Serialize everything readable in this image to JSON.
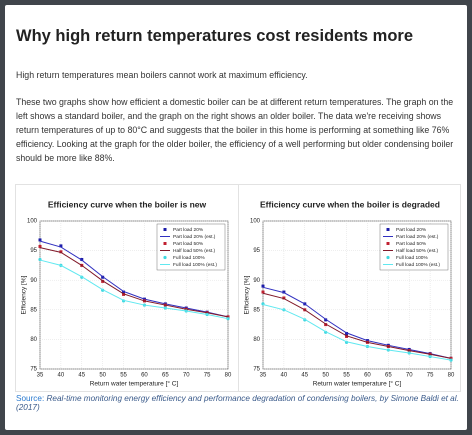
{
  "header": {
    "title": "Why high return temperatures cost residents more"
  },
  "paragraphs": [
    "High return temperatures mean boilers cannot work at maximum efficiency.",
    "These two graphs show how efficient a domestic boiler can be at different return temperatures. The graph on the left shows a standard boiler, and the graph on the right shows an older boiler. The data we're receiving shows return temperatures of up to 80°C and suggests that the boiler in this home is performing at something like 76% efficiency. Looking at the graph for the older boiler, the efficiency of a well performing but older condensing boiler should be more like 88%."
  ],
  "figure": {
    "charts": [
      {
        "type": "line",
        "title": "Efficiency curve when the boiler is new",
        "x_label": "Return water temperature [° C]",
        "y_label": "Efficiency [%]",
        "x": [
          35,
          40,
          45,
          50,
          55,
          60,
          65,
          70,
          75,
          80
        ],
        "series": [
          {
            "name": "Part load 20%",
            "color": "#1c1ca8",
            "style": "markers",
            "marker": "square",
            "values": [
              96.8,
              95.8,
              93.5,
              90.5,
              88.0,
              86.8,
              86.0,
              85.3,
              84.6,
              83.8
            ]
          },
          {
            "name": "Part load 20% (est.)",
            "color": "#3030c0",
            "style": "line",
            "values": [
              96.6,
              95.6,
              93.4,
              90.6,
              88.1,
              86.8,
              86.0,
              85.3,
              84.6,
              83.8
            ]
          },
          {
            "name": "Part load 50%",
            "color": "#c02030",
            "style": "markers",
            "marker": "square",
            "values": [
              95.7,
              94.8,
              92.5,
              89.8,
              87.6,
              86.5,
              85.8,
              85.1,
              84.5,
              83.8
            ]
          },
          {
            "name": "Half load 50% (est.)",
            "color": "#801828",
            "style": "line",
            "values": [
              95.5,
              94.7,
              92.5,
              89.9,
              87.7,
              86.5,
              85.8,
              85.1,
              84.5,
              83.8
            ]
          },
          {
            "name": "Full load 100%",
            "color": "#40d8e0",
            "style": "markers",
            "marker": "circle",
            "values": [
              93.5,
              92.5,
              90.5,
              88.3,
              86.5,
              85.8,
              85.3,
              84.8,
              84.2,
              83.5
            ]
          },
          {
            "name": "Full load 100% (est.)",
            "color": "#60e8f0",
            "style": "line",
            "values": [
              93.4,
              92.5,
              90.6,
              88.4,
              86.6,
              85.8,
              85.3,
              84.8,
              84.2,
              83.5
            ]
          }
        ],
        "xlim": [
          35,
          80
        ],
        "ylim": [
          75,
          100
        ],
        "xticks": [
          35,
          40,
          45,
          50,
          55,
          60,
          65,
          70,
          75,
          80
        ],
        "yticks": [
          75,
          80,
          85,
          90,
          95,
          100
        ],
        "grid": true,
        "legend": "upper right"
      },
      {
        "type": "line",
        "title": "Efficiency curve when the boiler is degraded",
        "x_label": "Return water temperature [° C]",
        "y_label": "Efficiency [%]",
        "x": [
          35,
          40,
          45,
          50,
          55,
          60,
          65,
          70,
          75,
          80
        ],
        "series": [
          {
            "name": "Part load 20%",
            "color": "#1c1ca8",
            "style": "markers",
            "marker": "square",
            "values": [
              89.0,
              88.0,
              86.0,
              83.3,
              81.0,
              79.8,
              79.0,
              78.3,
              77.6,
              76.8
            ]
          },
          {
            "name": "Part load 20% (est.)",
            "color": "#3030c0",
            "style": "line",
            "values": [
              88.8,
              87.9,
              86.0,
              83.4,
              81.1,
              79.8,
              79.0,
              78.3,
              77.6,
              76.8
            ]
          },
          {
            "name": "Part load 50%",
            "color": "#c02030",
            "style": "markers",
            "marker": "square",
            "values": [
              88.0,
              87.0,
              85.0,
              82.5,
              80.5,
              79.5,
              78.8,
              78.1,
              77.5,
              76.8
            ]
          },
          {
            "name": "Half load 50% (est.)",
            "color": "#801828",
            "style": "line",
            "values": [
              87.8,
              86.9,
              85.0,
              82.6,
              80.6,
              79.5,
              78.8,
              78.1,
              77.5,
              76.8
            ]
          },
          {
            "name": "Full load 100%",
            "color": "#40d8e0",
            "style": "markers",
            "marker": "circle",
            "values": [
              86.0,
              85.0,
              83.3,
              81.2,
              79.5,
              78.8,
              78.2,
              77.7,
              77.1,
              76.5
            ]
          },
          {
            "name": "Full load 100% (est.)",
            "color": "#60e8f0",
            "style": "line",
            "values": [
              85.9,
              85.0,
              83.4,
              81.3,
              79.6,
              78.8,
              78.2,
              77.7,
              77.1,
              76.5
            ]
          }
        ],
        "xlim": [
          35,
          80
        ],
        "ylim": [
          75,
          100
        ],
        "xticks": [
          35,
          40,
          45,
          50,
          55,
          60,
          65,
          70,
          75,
          80
        ],
        "yticks": [
          75,
          80,
          85,
          90,
          95,
          100
        ],
        "grid": true,
        "legend": "upper right"
      }
    ],
    "source": {
      "label": "Source:",
      "text": "Real-time monitoring energy efficiency and performance degradation of condensing boilers, by Simone Baldi et al. (2017)"
    }
  }
}
